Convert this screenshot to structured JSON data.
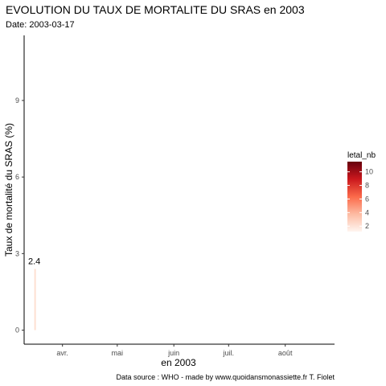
{
  "chart_data": {
    "type": "bar",
    "title": "EVOLUTION DU TAUX DE MORTALITE DU SRAS en 2003",
    "subtitle": "Date: 2003-03-17",
    "xlabel": "en 2003",
    "ylabel": "Taux de mortalité du SRAS (%)",
    "caption": "Data source : WHO - made by www.quoidansmonassiette.fr T. Fiolet",
    "x_ticks": [
      {
        "label": "avr.",
        "date": "2003-04-01"
      },
      {
        "label": "mai",
        "date": "2003-05-01"
      },
      {
        "label": "juin",
        "date": "2003-06-01"
      },
      {
        "label": "juil.",
        "date": "2003-07-01"
      },
      {
        "label": "août",
        "date": "2003-08-01"
      }
    ],
    "y_ticks": [
      0,
      3,
      6,
      9
    ],
    "xlim": [
      "2003-03-11",
      "2003-08-28"
    ],
    "ylim": [
      -0.55,
      11.55
    ],
    "grid": false,
    "points": [
      {
        "date": "2003-03-17",
        "value": 2.4,
        "label": "2.4",
        "color": "#fee0d2"
      }
    ],
    "legend": {
      "title": "letal_nb",
      "position": "right",
      "breaks": [
        2,
        4,
        6,
        8,
        10
      ],
      "range": [
        1.2,
        11.5
      ],
      "colors": [
        "#fff5f0",
        "#fdbba2",
        "#fb6a4a",
        "#cb181d",
        "#67000d"
      ]
    }
  }
}
